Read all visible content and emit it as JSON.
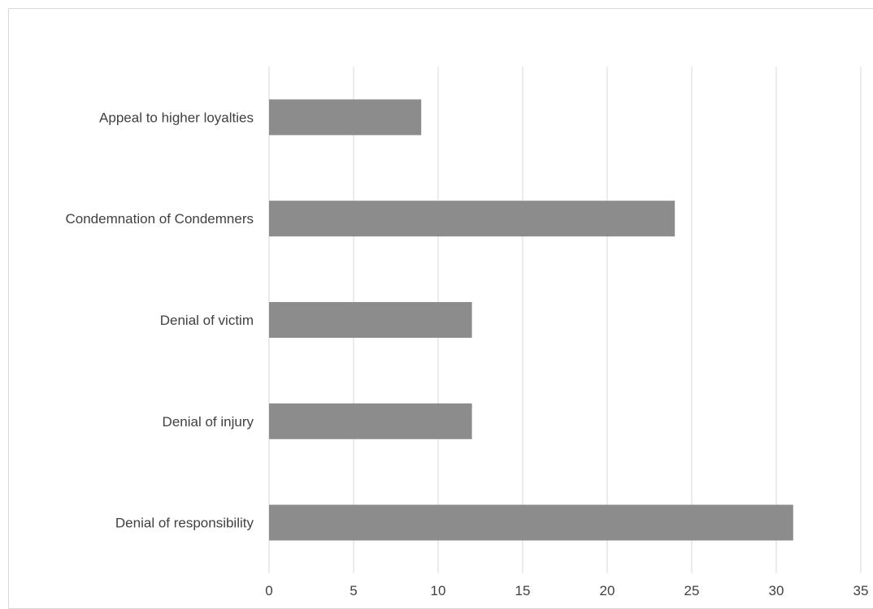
{
  "chart_data": {
    "type": "bar",
    "orientation": "horizontal",
    "categories": [
      "Appeal to higher loyalties",
      "Condemnation of Condemners",
      "Denial of victim",
      "Denial of injury",
      "Denial of responsibility"
    ],
    "values": [
      9,
      24,
      12,
      12,
      31
    ],
    "xlim": [
      0,
      35
    ],
    "xticks": [
      "0",
      "5",
      "10",
      "15",
      "20",
      "25",
      "30",
      "35"
    ],
    "grid": true,
    "bar_color": "#8c8c8c",
    "grid_color": "#d9d9d9",
    "legend": "none"
  }
}
